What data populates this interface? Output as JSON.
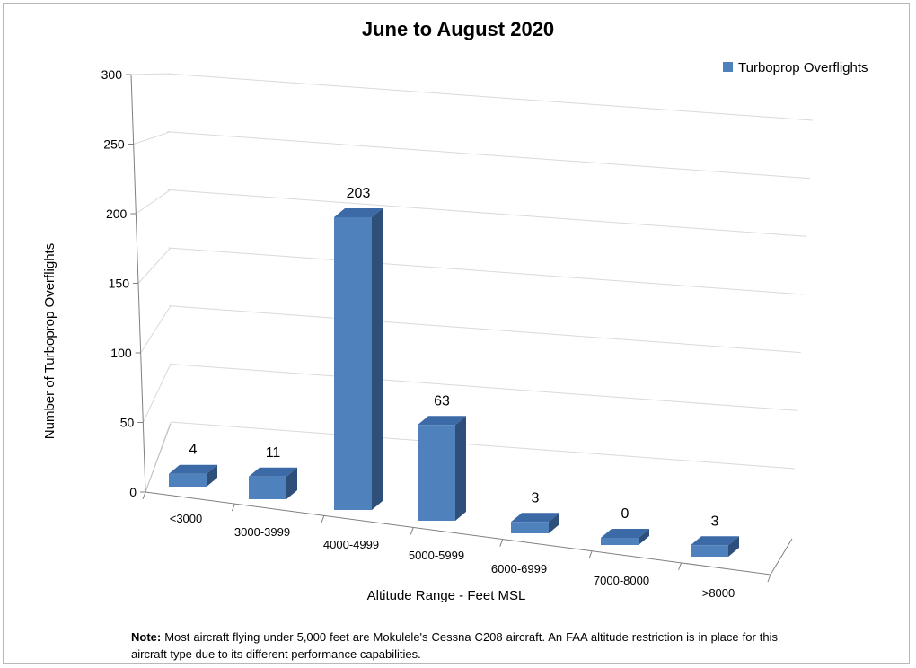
{
  "chart_data": {
    "type": "bar",
    "title": "June to August 2020",
    "xlabel": "Altitude Range - Feet MSL",
    "ylabel": "Number of Turboprop Overflights",
    "categories": [
      "<3000",
      "3000-3999",
      "4000-4999",
      "5000-5999",
      "6000-6999",
      "7000-8000",
      ">8000"
    ],
    "series": [
      {
        "name": "Turboprop Overflights",
        "values": [
          4,
          11,
          203,
          63,
          3,
          0,
          3
        ]
      }
    ],
    "ylim": [
      0,
      300
    ],
    "yticks": [
      0,
      50,
      100,
      150,
      200,
      250,
      300
    ],
    "grid": true,
    "legend": "top-right",
    "colors": {
      "bar_front": "#4f81bd",
      "bar_side": "#2e4f7a",
      "bar_top": "#3b6aa6",
      "grid": "#d9d9d9",
      "axis": "#808080"
    }
  },
  "note": {
    "label": "Note:",
    "text": "Most aircraft flying under 5,000 feet are Mokulele's Cessna C208 aircraft. An FAA altitude restriction is in place for this aircraft type due to its different performance capabilities."
  }
}
